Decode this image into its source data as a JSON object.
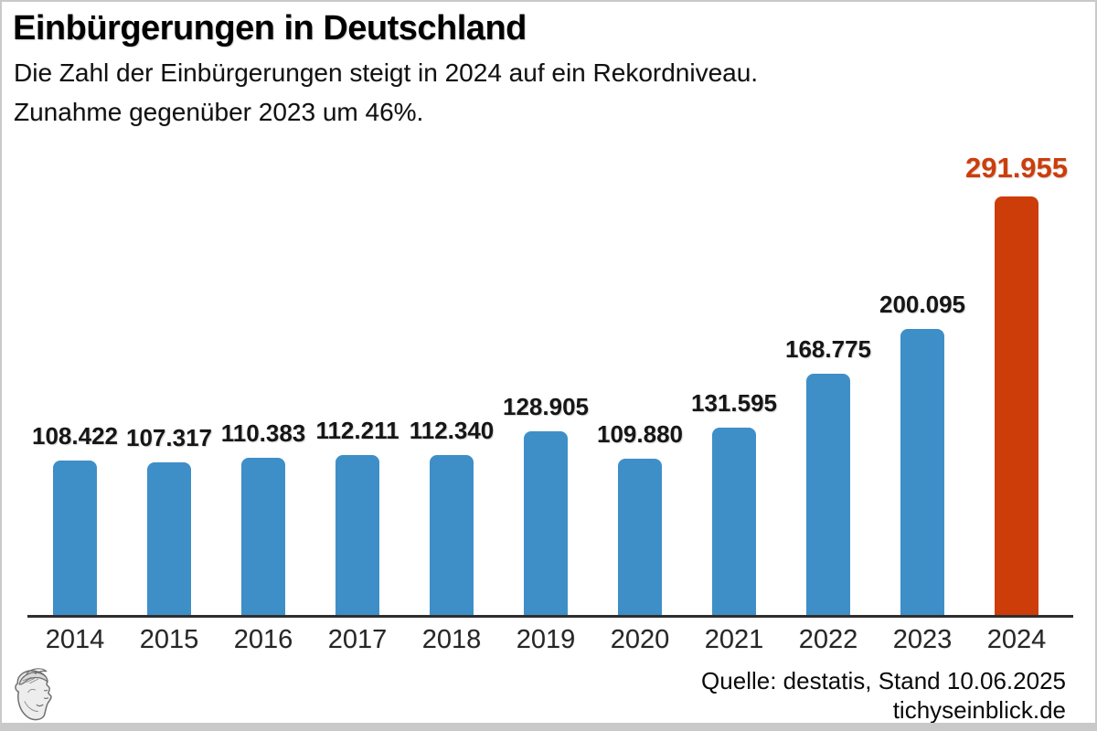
{
  "header": {
    "title": "Einbürgerungen in Deutschland",
    "subtitle_line1": "Die Zahl der Einbürgerungen steigt in 2024 auf ein Rekordniveau.",
    "subtitle_line2": "Zunahme gegenüber 2023 um 46%."
  },
  "footer": {
    "source": "Quelle: destatis, Stand 10.06.2025",
    "website": "tichyseinblick.de",
    "logo": "hermes-head-logo"
  },
  "chart_data": {
    "type": "bar",
    "title": "Einbürgerungen in Deutschland",
    "categories": [
      "2014",
      "2015",
      "2016",
      "2017",
      "2018",
      "2019",
      "2020",
      "2021",
      "2022",
      "2023",
      "2024"
    ],
    "values": [
      108422,
      107317,
      110383,
      112211,
      112340,
      128905,
      109880,
      131595,
      168775,
      200095,
      291955
    ],
    "value_labels": [
      "108.422",
      "107.317",
      "110.383",
      "112.211",
      "112.340",
      "128.905",
      "109.880",
      "131.595",
      "168.775",
      "200.095",
      "291.955"
    ],
    "highlight_index": 10,
    "bar_color": "#3e8fc8",
    "highlight_color": "#cc3d0a",
    "label_color": "#161616",
    "highlight_label_color": "#cc3d0a",
    "xlabel": "",
    "ylabel": "",
    "ylim": [
      0,
      292000
    ],
    "grid": false,
    "legend": false
  }
}
